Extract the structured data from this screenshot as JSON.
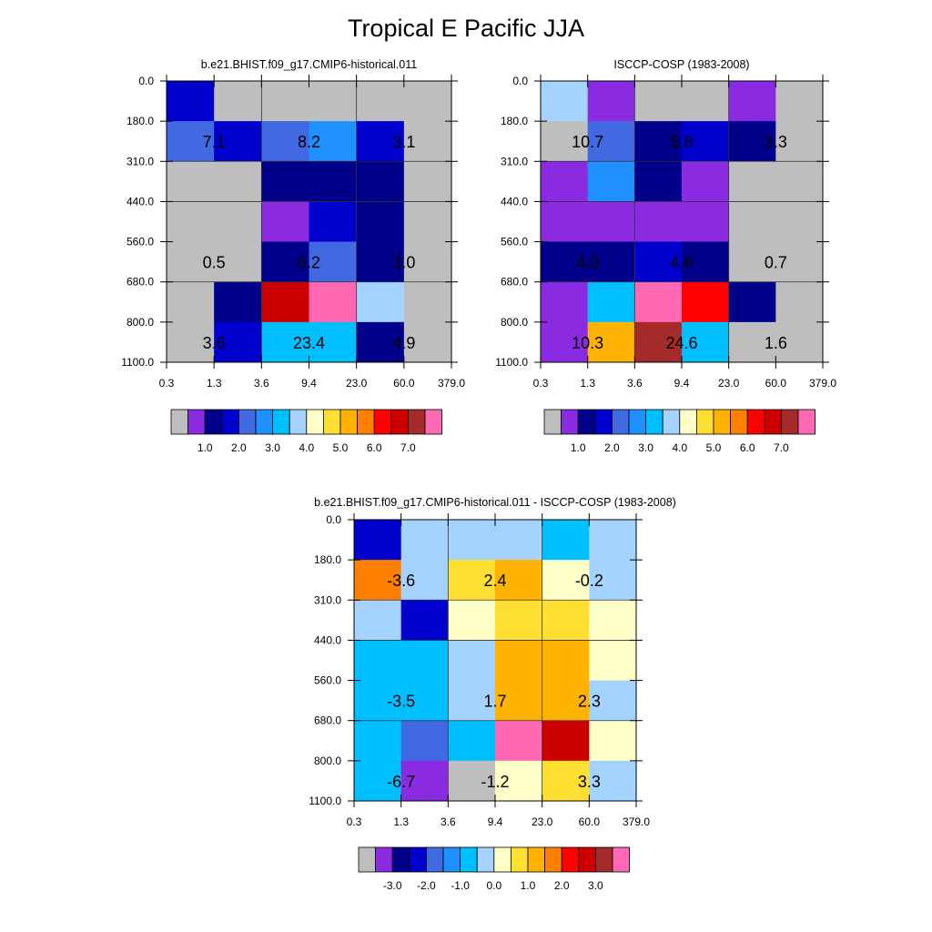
{
  "title": "Tropical E Pacific JJA",
  "chart_data": [
    {
      "type": "heatmap",
      "title": "b.e21.BHIST.f09_g17.CMIP6-historical.011",
      "x_ticks": [
        "0.3",
        "1.3",
        "3.6",
        "9.4",
        "23.0",
        "60.0",
        "379.0"
      ],
      "y_ticks": [
        "0.0",
        "180.0",
        "310.0",
        "440.0",
        "560.0",
        "680.0",
        "800.0",
        "1100.0"
      ],
      "rows": [
        [
          "#0000cd",
          "#bebebe",
          "#bebebe",
          "#bebebe",
          "#bebebe",
          "#bebebe"
        ],
        [
          "#4169e1",
          "#0000cd",
          "#4169e1",
          "#1e90ff",
          "#0000cd",
          "#bebebe"
        ],
        [
          "#bebebe",
          "#bebebe",
          "#00008b",
          "#00008b",
          "#00008b",
          "#bebebe"
        ],
        [
          "#bebebe",
          "#bebebe",
          "#8a2be2",
          "#0000cd",
          "#00008b",
          "#bebebe"
        ],
        [
          "#bebebe",
          "#bebebe",
          "#00008b",
          "#4169e1",
          "#00008b",
          "#bebebe"
        ],
        [
          "#bebebe",
          "#00008b",
          "#cd0000",
          "#ff69b4",
          "#a4d3ff",
          "#bebebe"
        ],
        [
          "#bebebe",
          "#0000cd",
          "#00bfff",
          "#00bfff",
          "#00008b",
          "#bebebe"
        ]
      ],
      "annotations": [
        {
          "col": 0,
          "row": 1,
          "text": "7.1"
        },
        {
          "col": 2,
          "row": 1,
          "text": "8.2"
        },
        {
          "col": 4,
          "row": 1,
          "text": "3.1"
        },
        {
          "col": 0,
          "row": 4,
          "text": "0.5"
        },
        {
          "col": 2,
          "row": 4,
          "text": "6.2"
        },
        {
          "col": 4,
          "row": 4,
          "text": "3.0"
        },
        {
          "col": 0,
          "row": 6,
          "text": "3.6"
        },
        {
          "col": 2,
          "row": 6,
          "text": "23.4"
        },
        {
          "col": 4,
          "row": 6,
          "text": "4.9"
        }
      ],
      "colorbar": {
        "colors": [
          "#bebebe",
          "#8a2be2",
          "#00008b",
          "#0000cd",
          "#4169e1",
          "#1e90ff",
          "#00bfff",
          "#a4d3ff",
          "#ffffc8",
          "#ffdf32",
          "#ffb300",
          "#ff8000",
          "#ff0000",
          "#cd0000",
          "#a52a2a",
          "#ff69b4"
        ],
        "labels": [
          "1.0",
          "2.0",
          "3.0",
          "4.0",
          "5.0",
          "6.0",
          "7.0"
        ],
        "label_after_box": 2,
        "label_step": 2
      }
    },
    {
      "type": "heatmap",
      "title": "ISCCP-COSP (1983-2008)",
      "x_ticks": [
        "0.3",
        "1.3",
        "3.6",
        "9.4",
        "23.0",
        "60.0",
        "379.0"
      ],
      "y_ticks": [
        "0.0",
        "180.0",
        "310.0",
        "440.0",
        "560.0",
        "680.0",
        "800.0",
        "1100.0"
      ],
      "rows": [
        [
          "#a4d3ff",
          "#8a2be2",
          "#bebebe",
          "#bebebe",
          "#8a2be2",
          "#bebebe"
        ],
        [
          "#bebebe",
          "#4169e1",
          "#00008b",
          "#0000cd",
          "#00008b",
          "#bebebe"
        ],
        [
          "#8a2be2",
          "#1e90ff",
          "#00008b",
          "#8a2be2",
          "#bebebe",
          "#bebebe"
        ],
        [
          "#8a2be2",
          "#8a2be2",
          "#8a2be2",
          "#8a2be2",
          "#bebebe",
          "#bebebe"
        ],
        [
          "#00008b",
          "#00008b",
          "#0000cd",
          "#00008b",
          "#bebebe",
          "#bebebe"
        ],
        [
          "#8a2be2",
          "#00bfff",
          "#ff69b4",
          "#ff0000",
          "#00008b",
          "#bebebe"
        ],
        [
          "#8a2be2",
          "#ffb300",
          "#a52a2a",
          "#00bfff",
          "#bebebe",
          "#bebebe"
        ]
      ],
      "annotations": [
        {
          "col": 0,
          "row": 1,
          "text": "10.7"
        },
        {
          "col": 2,
          "row": 1,
          "text": "5.8"
        },
        {
          "col": 4,
          "row": 1,
          "text": "3.3"
        },
        {
          "col": 0,
          "row": 4,
          "text": "4.0"
        },
        {
          "col": 2,
          "row": 4,
          "text": "4.6"
        },
        {
          "col": 4,
          "row": 4,
          "text": "0.7"
        },
        {
          "col": 0,
          "row": 6,
          "text": "10.3"
        },
        {
          "col": 2,
          "row": 6,
          "text": "24.6"
        },
        {
          "col": 4,
          "row": 6,
          "text": "1.6"
        }
      ],
      "colorbar": {
        "colors": [
          "#bebebe",
          "#8a2be2",
          "#00008b",
          "#0000cd",
          "#4169e1",
          "#1e90ff",
          "#00bfff",
          "#a4d3ff",
          "#ffffc8",
          "#ffdf32",
          "#ffb300",
          "#ff8000",
          "#ff0000",
          "#cd0000",
          "#a52a2a",
          "#ff69b4"
        ],
        "labels": [
          "1.0",
          "2.0",
          "3.0",
          "4.0",
          "5.0",
          "6.0",
          "7.0"
        ],
        "label_after_box": 2,
        "label_step": 2
      }
    },
    {
      "type": "heatmap",
      "title": "b.e21.BHIST.f09_g17.CMIP6-historical.011 - ISCCP-COSP (1983-2008)",
      "x_ticks": [
        "0.3",
        "1.3",
        "3.6",
        "9.4",
        "23.0",
        "60.0",
        "379.0"
      ],
      "y_ticks": [
        "0.0",
        "180.0",
        "310.0",
        "440.0",
        "560.0",
        "680.0",
        "800.0",
        "1100.0"
      ],
      "rows": [
        [
          "#0000cd",
          "#a4d3ff",
          "#a4d3ff",
          "#a4d3ff",
          "#00bfff",
          "#a4d3ff"
        ],
        [
          "#ff8000",
          "#a4d3ff",
          "#ffdf32",
          "#ffb300",
          "#ffffc8",
          "#a4d3ff"
        ],
        [
          "#a4d3ff",
          "#0000cd",
          "#ffffc8",
          "#ffdf32",
          "#ffdf32",
          "#ffffc8"
        ],
        [
          "#00bfff",
          "#00bfff",
          "#a4d3ff",
          "#ffb300",
          "#ffb300",
          "#ffffc8"
        ],
        [
          "#00bfff",
          "#00bfff",
          "#a4d3ff",
          "#ffb300",
          "#ffb300",
          "#a4d3ff"
        ],
        [
          "#00bfff",
          "#4169e1",
          "#00bfff",
          "#ff69b4",
          "#cd0000",
          "#ffffc8"
        ],
        [
          "#00bfff",
          "#8a2be2",
          "#bebebe",
          "#ffffc8",
          "#ffdf32",
          "#a4d3ff"
        ]
      ],
      "annotations": [
        {
          "col": 0,
          "row": 1,
          "text": "-3.6"
        },
        {
          "col": 2,
          "row": 1,
          "text": "2.4"
        },
        {
          "col": 4,
          "row": 1,
          "text": "-0.2"
        },
        {
          "col": 0,
          "row": 4,
          "text": "-3.5"
        },
        {
          "col": 2,
          "row": 4,
          "text": "1.7"
        },
        {
          "col": 4,
          "row": 4,
          "text": "2.3"
        },
        {
          "col": 0,
          "row": 6,
          "text": "-6.7"
        },
        {
          "col": 2,
          "row": 6,
          "text": "-1.2"
        },
        {
          "col": 4,
          "row": 6,
          "text": "3.3"
        }
      ],
      "colorbar": {
        "colors": [
          "#bebebe",
          "#8a2be2",
          "#00008b",
          "#0000cd",
          "#4169e1",
          "#1e90ff",
          "#00bfff",
          "#a4d3ff",
          "#ffffc8",
          "#ffdf32",
          "#ffb300",
          "#ff8000",
          "#ff0000",
          "#cd0000",
          "#a52a2a",
          "#ff69b4"
        ],
        "labels": [
          "-3.0",
          "-2.0",
          "-1.0",
          "0.0",
          "1.0",
          "2.0",
          "3.0"
        ],
        "label_after_box": 2,
        "label_step": 2
      }
    }
  ]
}
